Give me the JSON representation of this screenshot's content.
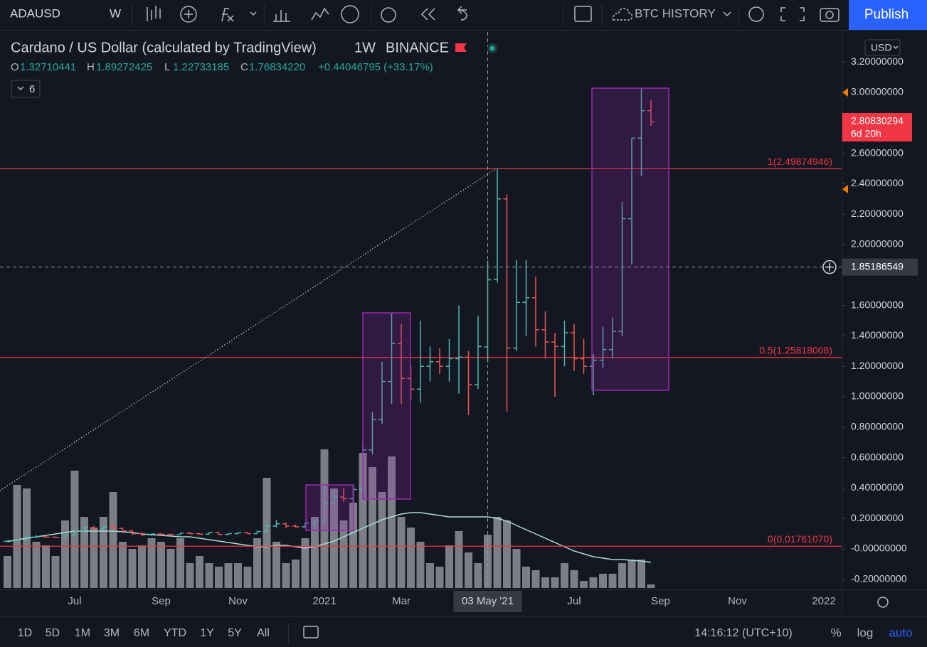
{
  "toolbar": {
    "symbol": "ADAUSD",
    "interval": "W",
    "layout": "BTC HISTORY",
    "publish": "Publish"
  },
  "legend": {
    "title": "Cardano / US Dollar (calculated by TradingView)",
    "interval": "1W",
    "exchange": "BINANCE",
    "o_label": "O",
    "open": "1.32710441",
    "h_label": "H",
    "high": "1.89272425",
    "l_label": "L",
    "low": "1.22733185",
    "c_label": "C",
    "close": "1.76834220",
    "change": "+0.44046795 (+33.17%)",
    "indicators_count": "6"
  },
  "currency": "USD",
  "chart_data": {
    "type": "ohlc",
    "categories": [
      null,
      null,
      null,
      null,
      null,
      null,
      null,
      "Jul",
      null,
      null,
      null,
      null,
      null,
      null,
      null,
      null,
      "Sep",
      null,
      null,
      null,
      null,
      null,
      null,
      null,
      "Nov",
      null,
      null,
      null,
      null,
      null,
      null,
      null,
      null,
      "2021",
      null,
      null,
      null,
      null,
      null,
      null,
      null,
      "Mar",
      null,
      null,
      null,
      null,
      null,
      null,
      null,
      null,
      "03 May '21",
      null,
      null,
      null,
      null,
      null,
      null,
      null,
      null,
      "Jul",
      null,
      null,
      null,
      null,
      null,
      null,
      null,
      null,
      "Sep",
      null,
      null,
      null,
      null,
      null,
      null,
      null,
      "Nov",
      null,
      null,
      null,
      null,
      null,
      null,
      null,
      null,
      "2022"
    ],
    "ohlc": [
      [
        0.05,
        0.056,
        0.046,
        0.054
      ],
      [
        0.054,
        0.062,
        0.052,
        0.06
      ],
      [
        0.06,
        0.082,
        0.058,
        0.078
      ],
      [
        0.078,
        0.09,
        0.072,
        0.08
      ],
      [
        0.08,
        0.084,
        0.074,
        0.077
      ],
      [
        0.077,
        0.082,
        0.072,
        0.075
      ],
      [
        0.075,
        0.092,
        0.074,
        0.09
      ],
      [
        0.09,
        0.12,
        0.088,
        0.118
      ],
      [
        0.118,
        0.145,
        0.11,
        0.14
      ],
      [
        0.14,
        0.152,
        0.125,
        0.132
      ],
      [
        0.132,
        0.15,
        0.128,
        0.146
      ],
      [
        0.146,
        0.158,
        0.13,
        0.135
      ],
      [
        0.135,
        0.138,
        0.112,
        0.118
      ],
      [
        0.118,
        0.125,
        0.09,
        0.1
      ],
      [
        0.1,
        0.11,
        0.085,
        0.092
      ],
      [
        0.092,
        0.102,
        0.085,
        0.098
      ],
      [
        0.098,
        0.105,
        0.09,
        0.095
      ],
      [
        0.095,
        0.1,
        0.088,
        0.093
      ],
      [
        0.093,
        0.108,
        0.09,
        0.104
      ],
      [
        0.104,
        0.112,
        0.098,
        0.1
      ],
      [
        0.1,
        0.104,
        0.094,
        0.097
      ],
      [
        0.097,
        0.11,
        0.095,
        0.108
      ],
      [
        0.108,
        0.112,
        0.092,
        0.095
      ],
      [
        0.095,
        0.102,
        0.09,
        0.1
      ],
      [
        0.1,
        0.11,
        0.096,
        0.106
      ],
      [
        0.106,
        0.112,
        0.098,
        0.1
      ],
      [
        0.1,
        0.12,
        0.098,
        0.115
      ],
      [
        0.115,
        0.16,
        0.11,
        0.15
      ],
      [
        0.15,
        0.19,
        0.14,
        0.165
      ],
      [
        0.165,
        0.172,
        0.135,
        0.15
      ],
      [
        0.15,
        0.16,
        0.14,
        0.145
      ],
      [
        0.145,
        0.175,
        0.14,
        0.17
      ],
      [
        0.17,
        0.185,
        0.14,
        0.18
      ],
      [
        0.18,
        0.42,
        0.17,
        0.3
      ],
      [
        0.3,
        0.39,
        0.29,
        0.34
      ],
      [
        0.34,
        0.4,
        0.31,
        0.33
      ],
      [
        0.33,
        0.42,
        0.3,
        0.39
      ],
      [
        0.39,
        0.7,
        0.38,
        0.65
      ],
      [
        0.65,
        0.9,
        0.62,
        0.85
      ],
      [
        0.85,
        1.23,
        0.82,
        1.1
      ],
      [
        1.1,
        1.55,
        0.95,
        1.35
      ],
      [
        1.35,
        1.48,
        0.95,
        1.12
      ],
      [
        1.12,
        1.2,
        0.98,
        1.05
      ],
      [
        1.05,
        1.5,
        0.96,
        1.2
      ],
      [
        1.2,
        1.33,
        1.1,
        1.23
      ],
      [
        1.23,
        1.32,
        1.15,
        1.2
      ],
      [
        1.2,
        1.38,
        1.1,
        1.25
      ],
      [
        1.25,
        1.6,
        1.02,
        1.26
      ],
      [
        1.26,
        1.3,
        0.88,
        1.08
      ],
      [
        1.08,
        1.53,
        1.05,
        1.33
      ],
      [
        1.32710441,
        1.89272425,
        1.22733185,
        1.7683422
      ],
      [
        1.77,
        2.5,
        1.75,
        2.3
      ],
      [
        2.3,
        2.33,
        0.9,
        1.32
      ],
      [
        1.32,
        1.9,
        1.3,
        1.62
      ],
      [
        1.62,
        1.9,
        1.4,
        1.65
      ],
      [
        1.65,
        1.79,
        1.33,
        1.44
      ],
      [
        1.44,
        1.56,
        1.25,
        1.36
      ],
      [
        1.36,
        1.42,
        1.0,
        1.33
      ],
      [
        1.33,
        1.5,
        1.2,
        1.42
      ],
      [
        1.42,
        1.48,
        1.17,
        1.25
      ],
      [
        1.25,
        1.38,
        1.15,
        1.2
      ],
      [
        1.2,
        1.28,
        1.01,
        1.24
      ],
      [
        1.24,
        1.46,
        1.19,
        1.31
      ],
      [
        1.31,
        1.52,
        1.25,
        1.43
      ],
      [
        1.43,
        2.28,
        1.4,
        2.17
      ],
      [
        2.17,
        2.7,
        1.87,
        2.7
      ],
      [
        2.7,
        3.03,
        2.45,
        2.88
      ],
      [
        2.88,
        2.95,
        2.78,
        2.80830294
      ],
      null,
      null,
      null,
      null,
      null,
      null,
      null,
      null,
      null,
      null,
      null,
      null,
      null,
      null,
      null,
      null,
      null,
      null
    ],
    "volume": [
      45,
      145,
      140,
      65,
      60,
      45,
      95,
      165,
      100,
      85,
      100,
      135,
      65,
      55,
      60,
      70,
      65,
      55,
      70,
      35,
      45,
      35,
      30,
      35,
      35,
      30,
      70,
      155,
      65,
      35,
      40,
      70,
      100,
      195,
      140,
      95,
      120,
      190,
      170,
      135,
      185,
      100,
      85,
      65,
      35,
      30,
      60,
      80,
      50,
      35,
      75,
      100,
      95,
      55,
      30,
      25,
      15,
      15,
      35,
      25,
      10,
      15,
      20,
      20,
      35,
      40,
      40,
      5,
      null,
      null,
      null,
      null,
      null,
      null,
      null,
      null,
      null,
      null,
      null,
      null,
      null,
      null,
      null,
      null,
      null,
      null
    ],
    "volume_ma": [
      65,
      68,
      70,
      72,
      74,
      76,
      78,
      80,
      80,
      80,
      80,
      80,
      79,
      78,
      76,
      75,
      74,
      73,
      72,
      72,
      70,
      68,
      66,
      64,
      62,
      60,
      58,
      58,
      60,
      60,
      58,
      56,
      58,
      62,
      66,
      72,
      78,
      84,
      90,
      96,
      100,
      104,
      106,
      106,
      104,
      102,
      100,
      100,
      100,
      100,
      100,
      98,
      94,
      88,
      82,
      76,
      70,
      64,
      58,
      52,
      48,
      44,
      42,
      40,
      40,
      39,
      38,
      36,
      null,
      null,
      null,
      null,
      null,
      null,
      null,
      null,
      null,
      null,
      null,
      null,
      null,
      null,
      null,
      null,
      null,
      null
    ],
    "up_color": "#4db6ac",
    "down_color": "#ef5350",
    "volume_color": "#8f9196",
    "volume_ma_color": "#a7dcdc",
    "level_color": "#f23645",
    "ylim": [
      -0.257,
      3.397
    ],
    "yticks": [
      {
        "value": 3.2,
        "label": "3.20000000"
      },
      {
        "value": 3.0,
        "label": "3.00000000"
      },
      {
        "value": 2.6,
        "label": "2.60000000"
      },
      {
        "value": 2.4,
        "label": "2.40000000"
      },
      {
        "value": 2.2,
        "label": "2.20000000"
      },
      {
        "value": 2.0,
        "label": "2.00000000"
      },
      {
        "value": 1.6,
        "label": "1.60000000"
      },
      {
        "value": 1.4,
        "label": "1.40000000"
      },
      {
        "value": 1.2,
        "label": "1.20000000"
      },
      {
        "value": 1.0,
        "label": "1.00000000"
      },
      {
        "value": 0.8,
        "label": "0.80000000"
      },
      {
        "value": 0.6,
        "label": "0.60000000"
      },
      {
        "value": 0.4,
        "label": "0.40000000"
      },
      {
        "value": 0.2,
        "label": "0.20000000"
      },
      {
        "value": 0,
        "label": "-0.00000000"
      },
      {
        "value": -0.2,
        "label": "-0.20000000"
      }
    ],
    "levels": [
      {
        "value": 2.49874946,
        "label": "1(2.49874946)"
      },
      {
        "value": 1.25818008,
        "label": "0.5(1.25818008)"
      },
      {
        "value": 0.0176107,
        "label": "0(0.01761070)"
      }
    ],
    "last_price": 2.80830294,
    "countdown": "6d 20h",
    "crosshair": {
      "x": "03 May '21",
      "y": 1.85186549
    }
  },
  "footer": {
    "ranges": [
      "1D",
      "5D",
      "1M",
      "3M",
      "6M",
      "YTD",
      "1Y",
      "5Y",
      "All"
    ],
    "time": "14:16:12 (UTC+10)",
    "percent": "%",
    "log": "log",
    "auto": "auto"
  }
}
